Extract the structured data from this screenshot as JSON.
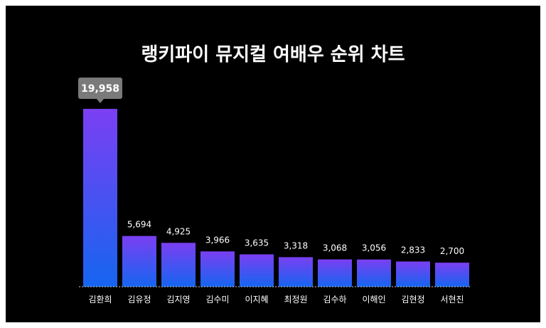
{
  "colors": {
    "background": "#000000",
    "bar_top": "#7b3ff2",
    "bar_bottom": "#1565f0",
    "highlight_box": "#7a7a7a",
    "axis": "#cccccc",
    "text": "#ffffff"
  },
  "chart_data": {
    "type": "bar",
    "title": "랭키파이 뮤지컬 여배우 순위 차트",
    "categories": [
      "김환희",
      "김유정",
      "김지영",
      "김수미",
      "이지혜",
      "최정원",
      "김수하",
      "이해인",
      "김현정",
      "서현진"
    ],
    "values": [
      19958,
      5694,
      4925,
      3966,
      3635,
      3318,
      3068,
      3056,
      2833,
      2700
    ],
    "value_labels": [
      "19,958",
      "5,694",
      "4,925",
      "3,966",
      "3,635",
      "3,318",
      "3,068",
      "3,056",
      "2,833",
      "2,700"
    ],
    "ylim": [
      0,
      19958
    ],
    "grid": false,
    "legend": "none",
    "highlighted_index": 0
  }
}
